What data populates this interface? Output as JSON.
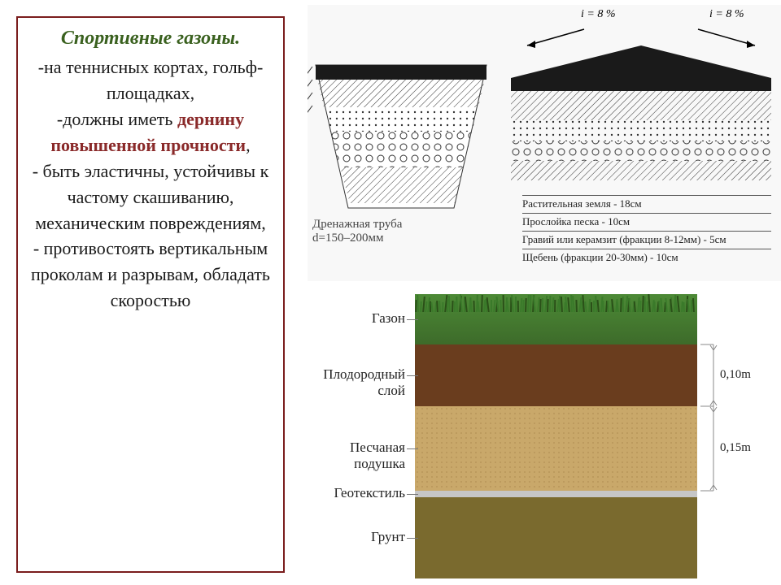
{
  "leftPanel": {
    "title": "Спортивные газоны.",
    "bullet1": "-на теннисных кортах, гольф-площадках,",
    "bullet2a": "-должны иметь ",
    "bullet2b": "дернину повышенной прочности",
    "bullet2c": ",",
    "bullet3": "- быть эластичны, устойчивы к частому скашиванию, механическим повреждениям,",
    "bullet4": "- противостоять вертикальным проколам и разрывам, обладать скоростью"
  },
  "topDiagram": {
    "slopeLeft": "i = 8 %",
    "slopeRight": "i = 8 %",
    "drainLabel1": "Дренажная труба",
    "drainLabel2": "d=150–200мм",
    "legend": [
      "Растительная земля - 18см",
      "Прослойка песка - 10см",
      "Гравий или керамзит (фракции 8-12мм) - 5см",
      "Щебень (фракции 20-30мм) - 10см"
    ]
  },
  "layerDiagram": {
    "labels": {
      "grass": "Газон",
      "fertile": "Плодородный слой",
      "sand": "Песчаная подушка",
      "geo": "Геотекстиль",
      "soil": "Грунт"
    },
    "dims": {
      "fertile": "0,10m",
      "sand": "0,15m"
    },
    "colors": {
      "grassTop": "#3a7a2a",
      "grassBase": "#3d6b2a",
      "fertile": "#6a3d1e",
      "sand": "#c9a86a",
      "geo": "#c6c6c6",
      "soil": "#7a6a2e"
    },
    "heights": {
      "grass": 62,
      "fertile": 76,
      "sand": 104,
      "geo": 8,
      "soil": 100
    }
  }
}
